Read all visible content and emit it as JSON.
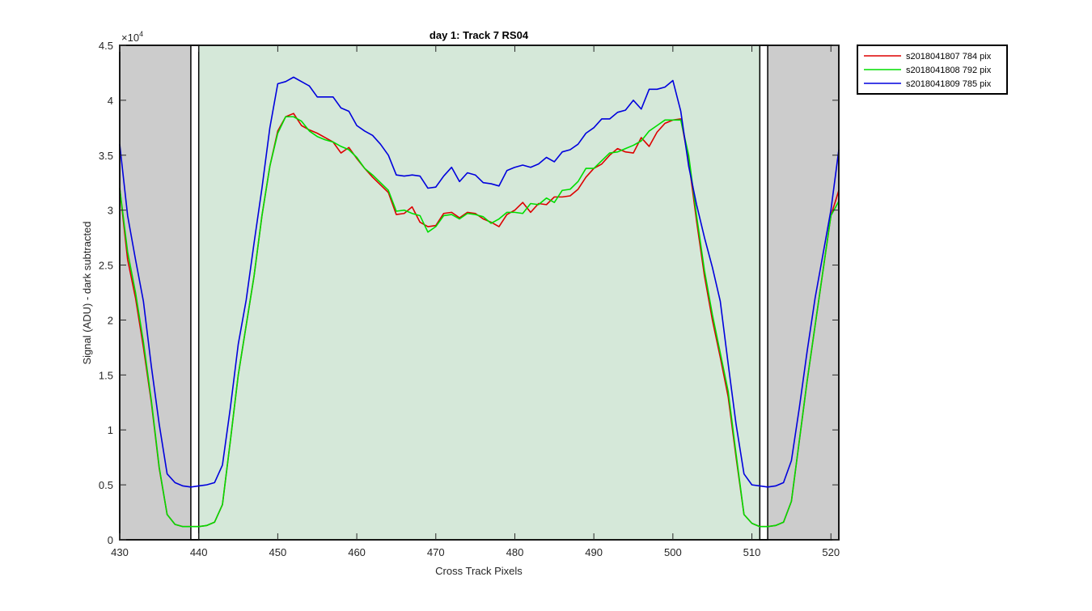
{
  "chart_data": {
    "type": "line",
    "title": "day 1: Track 7  RS04",
    "xlabel": "Cross Track Pixels",
    "ylabel": "Signal (ADU) - dark subtracted",
    "y_exponent_label": "×10",
    "y_exponent_power": "4",
    "xlim": [
      430,
      521
    ],
    "ylim": [
      0,
      4.5
    ],
    "xticks": [
      430,
      440,
      450,
      460,
      470,
      480,
      490,
      500,
      510,
      520
    ],
    "yticks": [
      0,
      0.5,
      1,
      1.5,
      2,
      2.5,
      3,
      3.5,
      4,
      4.5
    ],
    "grid": false,
    "legend_position": "outside-top-right",
    "regions": [
      {
        "x0": 430,
        "x1": 439,
        "kind": "excluded",
        "color": "#cccccc"
      },
      {
        "x0": 440,
        "x1": 511,
        "kind": "valid",
        "color": "#d5e8d9"
      },
      {
        "x0": 512,
        "x1": 521,
        "kind": "excluded",
        "color": "#cccccc"
      }
    ],
    "markers": [
      {
        "x0": 439,
        "x1": 440
      },
      {
        "x0": 511,
        "x1": 512
      }
    ],
    "x": [
      430,
      431,
      432,
      433,
      434,
      435,
      436,
      437,
      438,
      439,
      440,
      441,
      442,
      443,
      444,
      445,
      446,
      447,
      448,
      449,
      450,
      451,
      452,
      453,
      454,
      455,
      456,
      457,
      458,
      459,
      460,
      461,
      462,
      463,
      464,
      465,
      466,
      467,
      468,
      469,
      470,
      471,
      472,
      473,
      474,
      475,
      476,
      477,
      478,
      479,
      480,
      481,
      482,
      483,
      484,
      485,
      486,
      487,
      488,
      489,
      490,
      491,
      492,
      493,
      494,
      495,
      496,
      497,
      498,
      499,
      500,
      501,
      502,
      503,
      504,
      505,
      506,
      507,
      508,
      509,
      510,
      511,
      512,
      513,
      514,
      515,
      516,
      517,
      518,
      519,
      520,
      521
    ],
    "series": [
      {
        "name": "s2018041807 784 pix",
        "color": "#dd0000",
        "values": [
          3.2,
          2.55,
          2.2,
          1.75,
          1.25,
          0.65,
          0.23,
          0.14,
          0.12,
          0.12,
          0.12,
          0.13,
          0.16,
          0.32,
          0.9,
          1.5,
          1.95,
          2.4,
          2.95,
          3.4,
          3.72,
          3.85,
          3.88,
          3.77,
          3.73,
          3.7,
          3.66,
          3.62,
          3.52,
          3.57,
          3.47,
          3.38,
          3.3,
          3.23,
          3.16,
          2.96,
          2.97,
          3.03,
          2.89,
          2.85,
          2.86,
          2.97,
          2.98,
          2.93,
          2.98,
          2.97,
          2.92,
          2.89,
          2.85,
          2.96,
          3.0,
          3.07,
          2.98,
          3.06,
          3.05,
          3.12,
          3.12,
          3.13,
          3.19,
          3.3,
          3.38,
          3.42,
          3.5,
          3.56,
          3.53,
          3.52,
          3.66,
          3.58,
          3.71,
          3.79,
          3.82,
          3.83,
          3.45,
          2.9,
          2.4,
          2.0,
          1.66,
          1.3,
          0.75,
          0.23,
          0.15,
          0.12,
          0.12,
          0.13,
          0.16,
          0.35,
          0.9,
          1.45,
          1.95,
          2.45,
          2.95,
          3.18
        ]
      },
      {
        "name": "s2018041808 792 pix",
        "color": "#00dd00",
        "values": [
          3.2,
          2.62,
          2.25,
          1.8,
          1.27,
          0.66,
          0.23,
          0.14,
          0.12,
          0.12,
          0.12,
          0.13,
          0.16,
          0.32,
          0.9,
          1.5,
          1.95,
          2.4,
          2.95,
          3.4,
          3.7,
          3.85,
          3.85,
          3.81,
          3.72,
          3.67,
          3.64,
          3.62,
          3.58,
          3.55,
          3.48,
          3.38,
          3.32,
          3.25,
          3.18,
          2.99,
          3.0,
          2.97,
          2.95,
          2.8,
          2.85,
          2.95,
          2.96,
          2.92,
          2.97,
          2.96,
          2.94,
          2.88,
          2.92,
          2.98,
          2.98,
          2.97,
          3.06,
          3.05,
          3.11,
          3.07,
          3.18,
          3.19,
          3.26,
          3.38,
          3.38,
          3.45,
          3.52,
          3.53,
          3.56,
          3.59,
          3.63,
          3.72,
          3.77,
          3.82,
          3.82,
          3.82,
          3.5,
          2.95,
          2.45,
          2.05,
          1.7,
          1.35,
          0.78,
          0.23,
          0.15,
          0.12,
          0.12,
          0.13,
          0.16,
          0.35,
          0.9,
          1.45,
          1.95,
          2.45,
          2.95,
          3.08
        ]
      },
      {
        "name": "s2018041809 785 pix",
        "color": "#0000dd",
        "values": [
          3.6,
          2.95,
          2.55,
          2.17,
          1.58,
          1.05,
          0.6,
          0.52,
          0.49,
          0.48,
          0.49,
          0.5,
          0.52,
          0.68,
          1.2,
          1.78,
          2.18,
          2.7,
          3.2,
          3.75,
          4.15,
          4.17,
          4.21,
          4.17,
          4.13,
          4.03,
          4.03,
          4.03,
          3.93,
          3.9,
          3.77,
          3.72,
          3.68,
          3.6,
          3.5,
          3.32,
          3.31,
          3.32,
          3.31,
          3.2,
          3.21,
          3.31,
          3.39,
          3.26,
          3.34,
          3.32,
          3.25,
          3.24,
          3.22,
          3.36,
          3.39,
          3.41,
          3.39,
          3.42,
          3.48,
          3.44,
          3.53,
          3.55,
          3.6,
          3.7,
          3.75,
          3.83,
          3.83,
          3.89,
          3.91,
          4.0,
          3.92,
          4.1,
          4.1,
          4.12,
          4.18,
          3.9,
          3.4,
          3.05,
          2.75,
          2.48,
          2.17,
          1.6,
          1.05,
          0.6,
          0.5,
          0.49,
          0.48,
          0.49,
          0.52,
          0.72,
          1.2,
          1.72,
          2.2,
          2.6,
          3.0,
          3.55
        ]
      }
    ]
  }
}
